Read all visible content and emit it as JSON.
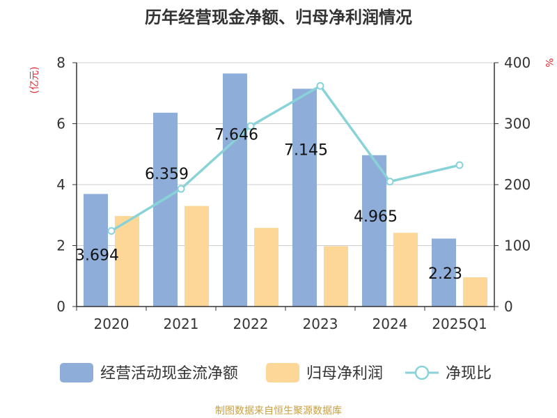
{
  "chart_data": {
    "type": "bar",
    "title": "历年经营现金净额、归母净利润情况",
    "categories": [
      "2020",
      "2021",
      "2022",
      "2023",
      "2024",
      "2025Q1"
    ],
    "y_left": {
      "label": "(亿元)",
      "ticks": [
        "0",
        "2",
        "4",
        "6",
        "8"
      ],
      "range": [
        0,
        8
      ]
    },
    "y_right": {
      "label": "%",
      "ticks": [
        "0",
        "100",
        "200",
        "300",
        "400"
      ],
      "range": [
        0,
        400
      ]
    },
    "series": [
      {
        "name": "经营活动现金流净额",
        "kind": "bar",
        "axis": "left",
        "color": "#8fadd9",
        "values": [
          3.694,
          6.359,
          7.646,
          7.145,
          4.965,
          2.23
        ],
        "labels": [
          "3.694",
          "6.359",
          "7.646",
          "7.145",
          "4.965",
          "2.23"
        ]
      },
      {
        "name": "归母净利润",
        "kind": "bar",
        "axis": "left",
        "color": "#fcd797",
        "values": [
          2.97,
          3.3,
          2.58,
          1.98,
          2.42,
          0.96
        ]
      },
      {
        "name": "净现比",
        "kind": "line",
        "axis": "right",
        "color": "#88d3d8",
        "values": [
          124,
          193,
          296,
          362,
          205,
          232
        ]
      }
    ],
    "legend": "bottom",
    "grid": true
  },
  "footer": {
    "source": "制图数据来自恒生聚源数据库"
  }
}
